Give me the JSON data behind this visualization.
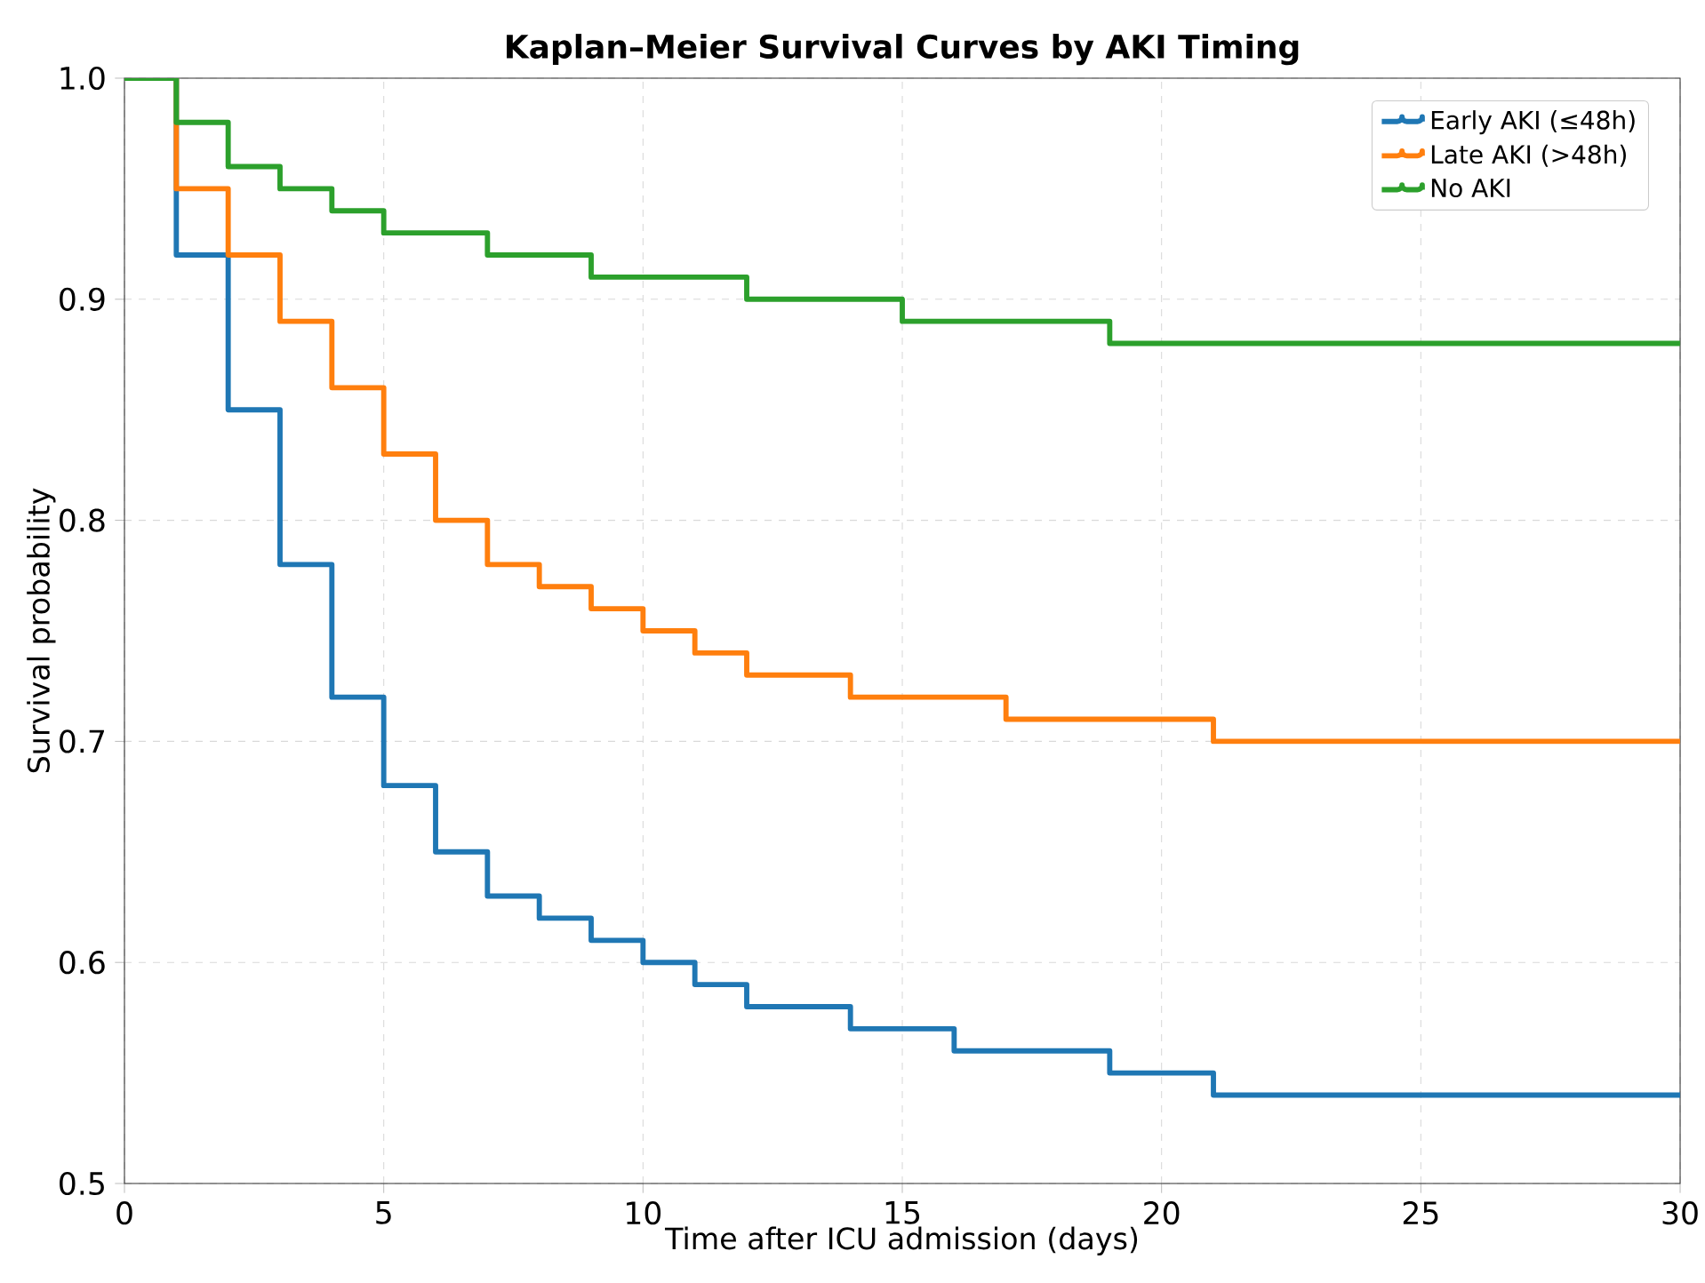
{
  "chart_data": {
    "type": "step",
    "title": "Kaplan–Meier Survival Curves by AKI Timing",
    "xlabel": "Time after ICU admission (days)",
    "ylabel": "Survival probability",
    "xlim": [
      0,
      30
    ],
    "ylim": [
      0.5,
      1.0
    ],
    "xticks": [
      0,
      5,
      10,
      15,
      20,
      25,
      30
    ],
    "yticks": [
      0.5,
      0.6,
      0.7,
      0.8,
      0.9,
      {
        "value": 1.0,
        "label": "1.0"
      }
    ],
    "grid": true,
    "legend": "top right",
    "line_style": "solid",
    "series": [
      {
        "name": "Early AKI (≤48h)",
        "color": "#1f77b4",
        "x": [
          0,
          1,
          2,
          3,
          4,
          5,
          6,
          7,
          8,
          9,
          10,
          11,
          12,
          14,
          16,
          19,
          21,
          30
        ],
        "values": [
          1.0,
          0.92,
          0.85,
          0.78,
          0.72,
          0.68,
          0.65,
          0.63,
          0.62,
          0.61,
          0.6,
          0.59,
          0.58,
          0.57,
          0.56,
          0.55,
          0.54,
          0.54
        ]
      },
      {
        "name": "Late AKI (>48h)",
        "color": "#ff7f0e",
        "x": [
          0,
          1,
          2,
          3,
          4,
          5,
          6,
          7,
          8,
          9,
          10,
          11,
          12,
          14,
          17,
          21,
          30
        ],
        "values": [
          1.0,
          0.95,
          0.92,
          0.89,
          0.86,
          0.83,
          0.8,
          0.78,
          0.77,
          0.76,
          0.75,
          0.74,
          0.73,
          0.72,
          0.71,
          0.7,
          0.7
        ]
      },
      {
        "name": "No AKI",
        "color": "#2ca02c",
        "x": [
          0,
          1,
          2,
          3,
          4,
          5,
          7,
          9,
          12,
          15,
          19,
          30
        ],
        "values": [
          1.0,
          0.98,
          0.96,
          0.95,
          0.94,
          0.93,
          0.92,
          0.91,
          0.9,
          0.89,
          0.88,
          0.88
        ]
      }
    ]
  }
}
